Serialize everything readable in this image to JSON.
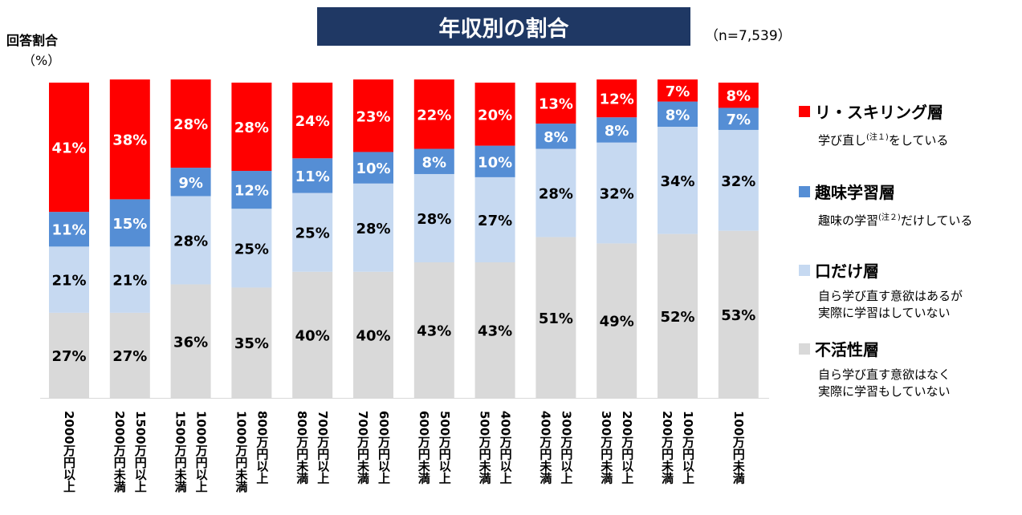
{
  "title": "年収別の割合",
  "sample_size": "（n=7,539）",
  "ylabel": "回答割合",
  "yunit": "（%）",
  "legend": [
    {
      "label": "リ・スキリング層",
      "color": "#ff0000",
      "desc_main": "学び直し",
      "desc_note": "(注１)",
      "desc_tail": "をしている",
      "desc_line2": ""
    },
    {
      "label": "趣味学習層",
      "color": "#558ed5",
      "desc_main": "趣味の学習",
      "desc_note": "(注２)",
      "desc_tail": "だけしている",
      "desc_line2": ""
    },
    {
      "label": "口だけ層",
      "color": "#c6d9f1",
      "desc_main": "自ら学び直す意欲はあるが",
      "desc_note": "",
      "desc_tail": "",
      "desc_line2": "実際に学習はしていない"
    },
    {
      "label": "不活性層",
      "color": "#d9d9d9",
      "desc_main": "自ら学び直す意欲はなく",
      "desc_note": "",
      "desc_tail": "",
      "desc_line2": "実際に学習もしていない"
    }
  ],
  "chart_data": {
    "type": "bar",
    "stacked": true,
    "categories": [
      "2000万円以上",
      "1500万円以上 2000万円未満",
      "1000万円以上 1500万円未満",
      "800万円以上 1000万円未満",
      "700万円以上 800万円未満",
      "600万円以上 700万円未満",
      "500万円以上 600万円未満",
      "400万円以上 500万円未満",
      "300万円以上 400万円未満",
      "200万円以上 300万円未満",
      "100万円以上 200万円未満",
      "100万円未満"
    ],
    "label_lines": [
      [
        "2000万円以上"
      ],
      [
        "1500万円以上",
        "2000万円未満"
      ],
      [
        "1000万円以上",
        "1500万円未満"
      ],
      [
        "800万円以上",
        "1000万円未満"
      ],
      [
        "700万円以上",
        "800万円未満"
      ],
      [
        "600万円以上",
        "700万円未満"
      ],
      [
        "500万円以上",
        "600万円未満"
      ],
      [
        "400万円以上",
        "500万円未満"
      ],
      [
        "300万円以上",
        "400万円未満"
      ],
      [
        "200万円以上",
        "300万円未満"
      ],
      [
        "100万円以上",
        "200万円未満"
      ],
      [
        "100万円未満"
      ]
    ],
    "series": [
      {
        "name": "不活性層",
        "color": "#d9d9d9",
        "values": [
          27,
          27,
          36,
          35,
          40,
          40,
          43,
          43,
          51,
          49,
          52,
          53
        ]
      },
      {
        "name": "口だけ層",
        "color": "#c6d9f1",
        "values": [
          21,
          21,
          28,
          25,
          25,
          28,
          28,
          27,
          28,
          32,
          34,
          32
        ]
      },
      {
        "name": "趣味学習層",
        "color": "#558ed5",
        "values": [
          11,
          15,
          9,
          12,
          11,
          10,
          8,
          10,
          8,
          8,
          8,
          7
        ]
      },
      {
        "name": "リ・スキリング層",
        "color": "#ff0000",
        "values": [
          41,
          38,
          28,
          28,
          24,
          23,
          22,
          20,
          13,
          12,
          7,
          8
        ]
      }
    ],
    "ylim": [
      0,
      100
    ],
    "grid": false,
    "legend_position": "right"
  }
}
